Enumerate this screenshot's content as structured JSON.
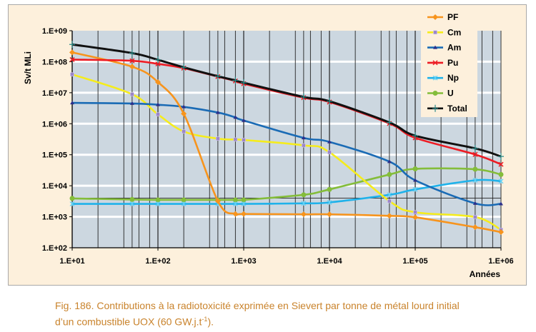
{
  "chart_data": {
    "type": "line",
    "xlabel": "Années",
    "ylabel": "Sv/t MLi",
    "xscale": "log",
    "yscale": "log",
    "xlim": [
      10,
      1000000
    ],
    "ylim": [
      100,
      1000000000
    ],
    "x_ticks": [
      "1.E+01",
      "1.E+02",
      "1.E+03",
      "1.E+04",
      "1.E+05",
      "1.E+06"
    ],
    "y_ticks": [
      "1.E+09",
      "1.E+08",
      "1.E+07",
      "1.E+06",
      "1.E+05",
      "1.E+04",
      "1.E+03",
      "1.E+02"
    ],
    "grid": true,
    "legend_position": "top-right",
    "x": [
      10,
      50,
      100,
      200,
      500,
      800,
      1000,
      5000,
      10000,
      50000,
      100000,
      500000,
      1000000
    ],
    "series": [
      {
        "name": "PF",
        "color": "#f7941d",
        "marker": "diamond",
        "values": [
          200000000,
          69000000,
          22000000,
          2100000,
          3200,
          1230,
          1230,
          1200,
          1200,
          1070,
          960,
          460,
          320
        ]
      },
      {
        "name": "Cm",
        "color": "#f5ec1c",
        "marker": "square",
        "values": [
          39000000,
          8900000,
          2000000,
          560000,
          330000,
          310000,
          300000,
          200000,
          120000,
          3200,
          1400,
          980,
          380
        ]
      },
      {
        "name": "Am",
        "color": "#1a6bb5",
        "marker": "triangle",
        "values": [
          4700000,
          4500000,
          4100000,
          3500000,
          2300000,
          1600000,
          1270000,
          350000,
          260000,
          60000,
          15000,
          2700,
          2600
        ]
      },
      {
        "name": "Pu",
        "color": "#ed1c24",
        "marker": "x",
        "values": [
          117000000,
          107000000,
          85000000,
          62000000,
          33000000,
          24000000,
          19500000,
          6900000,
          5000000,
          1020000,
          350000,
          102000,
          49000
        ]
      },
      {
        "name": "Np",
        "color": "#1fb2ea",
        "marker": "star",
        "values": [
          2600,
          2600,
          2600,
          2600,
          2600,
          2600,
          2600,
          2700,
          2900,
          5100,
          7600,
          15000,
          14000
        ]
      },
      {
        "name": "U",
        "color": "#84bd3a",
        "marker": "circle",
        "values": [
          3900,
          3600,
          3500,
          3500,
          3500,
          3500,
          3500,
          5100,
          7600,
          23000,
          35000,
          34000,
          23000
        ]
      },
      {
        "name": "Total",
        "color": "#111111",
        "marker": "plus",
        "values": [
          360000000,
          190000000,
          115000000,
          66000000,
          34000000,
          25000000,
          21000000,
          7300000,
          5300000,
          1100000,
          410000,
          160000,
          88000
        ]
      }
    ]
  },
  "caption": {
    "line1": "Fig. 186. Contributions à la radiotoxicité exprimée en Sievert par tonne de métal lourd initial",
    "line2": "d’un combustible UOX (60 GW.j.t",
    "sup": "-1",
    "end": ")."
  }
}
